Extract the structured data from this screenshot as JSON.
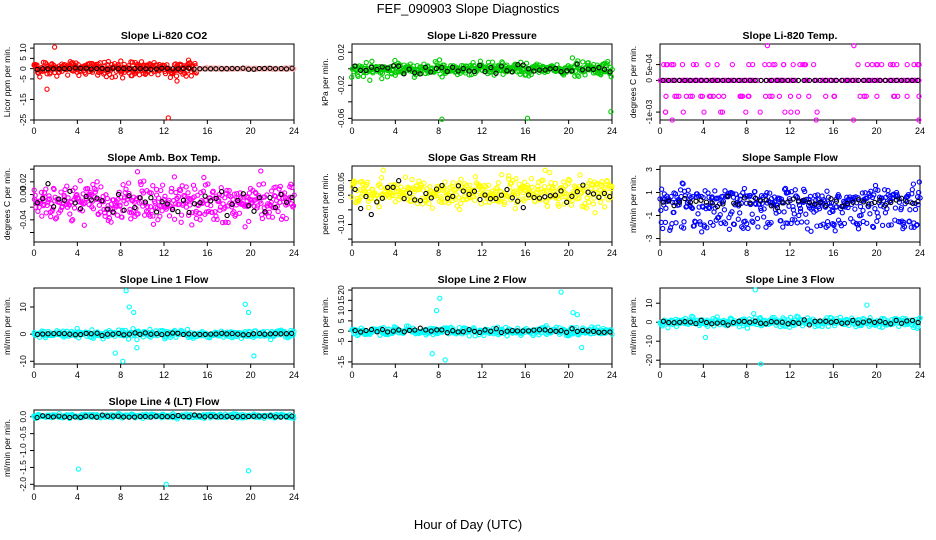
{
  "figure": {
    "title": "FEF_090903  Slope Diagnostics",
    "xlabel": "Hour of Day (UTC)"
  },
  "chart_data": [
    {
      "type": "scatter",
      "title": "Slope Li-820 CO2",
      "ylabel": "Licor ppm per min.",
      "xlim": [
        0,
        24
      ],
      "ylim": [
        -25,
        12
      ],
      "xticks": [
        0,
        4,
        8,
        12,
        16,
        20,
        24
      ],
      "yticks": [
        -25,
        -15,
        -5,
        0,
        5,
        10
      ],
      "ytick_labels": [
        "-25",
        "-15",
        "-5",
        "0",
        "5",
        "10"
      ],
      "grid": false,
      "series": [
        {
          "color": "#ff0000",
          "pattern": {
            "n": 300,
            "x": [
              0,
              15
            ],
            "center": 0,
            "spread": 3.5,
            "outliers": [
              [
                1.2,
                -10
              ],
              [
                1.9,
                10.5
              ],
              [
                12.4,
                -24
              ],
              [
                13.2,
                -6
              ]
            ]
          }
        },
        {
          "color": "#ffb0b0",
          "pattern": {
            "n": 120,
            "x": [
              15,
              24
            ],
            "center": 0,
            "spread": 0.4
          }
        },
        {
          "color": "#000000",
          "pattern": {
            "n": 48,
            "x": [
              0.3,
              23.8
            ],
            "center": 0,
            "spread": 0.3
          }
        }
      ]
    },
    {
      "type": "scatter",
      "title": "Slope Li-820 Pressure",
      "ylabel": "kPa per min.",
      "xlim": [
        0,
        24
      ],
      "ylim": [
        -0.062,
        0.03
      ],
      "xticks": [
        0,
        4,
        8,
        12,
        16,
        20,
        24
      ],
      "yticks": [
        -0.06,
        -0.04,
        -0.02,
        0.0,
        0.02
      ],
      "ytick_labels": [
        "-0.06",
        "",
        "-0.02",
        "",
        "0.02"
      ],
      "grid": false,
      "series": [
        {
          "color": "#00cc00",
          "pattern": {
            "n": 420,
            "x": [
              0,
              24
            ],
            "center": 0,
            "spread": 0.009,
            "outliers": [
              [
                8.3,
                -0.061
              ],
              [
                16.2,
                -0.06
              ],
              [
                23.9,
                -0.052
              ]
            ]
          }
        },
        {
          "color": "#000000",
          "pattern": {
            "n": 48,
            "x": [
              0.3,
              23.8
            ],
            "center": 0,
            "spread": 0.006
          }
        }
      ]
    },
    {
      "type": "scatter",
      "title": "Slope Li-820 Temp.",
      "ylabel": "degrees C per min.",
      "xlim": [
        0,
        24
      ],
      "ylim": [
        -0.00125,
        0.00115
      ],
      "xticks": [
        0,
        4,
        8,
        12,
        16,
        20,
        24
      ],
      "yticks": [
        -0.001,
        0.0,
        0.0005
      ],
      "ytick_labels": [
        "-1e-03",
        "0",
        "5e-04"
      ],
      "grid": false,
      "series": [
        {
          "color": "#ff00ff",
          "pattern": {
            "levels": [
              0.0011,
              0.0005,
              0,
              -0.0005,
              -0.001,
              -0.00125
            ],
            "x": [
              0,
              24
            ],
            "weights": [
              2,
              40,
              160,
              40,
              12,
              4
            ]
          }
        },
        {
          "color": "#000000",
          "pattern": {
            "n": 48,
            "x": [
              0.3,
              23.8
            ],
            "center": 0,
            "spread": 0
          }
        }
      ]
    },
    {
      "type": "scatter",
      "title": "Slope Amb. Box Temp.",
      "ylabel": "degrees C per min.",
      "xlim": [
        0,
        24
      ],
      "ylim": [
        -0.075,
        0.045
      ],
      "xticks": [
        0,
        4,
        8,
        12,
        16,
        20,
        24
      ],
      "yticks": [
        -0.06,
        -0.04,
        -0.02,
        0.0,
        0.02,
        0.04
      ],
      "ytick_labels": [
        "",
        "-0.04",
        "",
        "0.00",
        "0.02",
        ""
      ],
      "grid": false,
      "series": [
        {
          "color": "#ff00ff",
          "pattern": {
            "n": 420,
            "x": [
              0,
              24
            ],
            "center": -0.012,
            "spread": 0.03
          }
        },
        {
          "color": "#000000",
          "pattern": {
            "n": 48,
            "x": [
              0.3,
              23.8
            ],
            "center": -0.01,
            "spread": 0.022
          }
        }
      ]
    },
    {
      "type": "scatter",
      "title": "Slope Gas Stream RH",
      "ylabel": "percent per min.",
      "xlim": [
        0,
        24
      ],
      "ylim": [
        -0.16,
        0.1
      ],
      "xticks": [
        0,
        4,
        8,
        12,
        16,
        20,
        24
      ],
      "yticks": [
        -0.15,
        -0.1,
        -0.05,
        0.0,
        0.05
      ],
      "ytick_labels": [
        "",
        "-0.10",
        "",
        "0.00",
        "0.05"
      ],
      "grid": false,
      "series": [
        {
          "color": "#ffff00",
          "pattern": {
            "n": 420,
            "x": [
              0,
              24
            ],
            "center": 0.01,
            "spread": 0.05
          }
        },
        {
          "color": "#000000",
          "pattern": {
            "n": 48,
            "x": [
              0.3,
              23.8
            ],
            "center": 0,
            "spread": 0.035
          }
        }
      ]
    },
    {
      "type": "scatter",
      "title": "Slope Sample Flow",
      "ylabel": "ml/min per min.",
      "xlim": [
        0,
        24
      ],
      "ylim": [
        -3.3,
        3.3
      ],
      "xticks": [
        0,
        4,
        8,
        12,
        16,
        20,
        24
      ],
      "yticks": [
        -3,
        -1,
        1,
        3
      ],
      "ytick_labels": [
        "-3",
        "-1",
        "1",
        "3"
      ],
      "grid": false,
      "series": [
        {
          "color": "#0000ff",
          "pattern": {
            "n": 420,
            "x": [
              0,
              24
            ],
            "center": 0,
            "spread": 1.0,
            "bands": [
              0.8,
              -1.7
            ]
          }
        },
        {
          "color": "#000000",
          "pattern": {
            "n": 48,
            "x": [
              0.3,
              23.8
            ],
            "center": 0.2,
            "spread": 0.5
          }
        }
      ]
    },
    {
      "type": "scatter",
      "title": "Slope Line 1 Flow",
      "ylabel": "ml/min per min.",
      "xlim": [
        0,
        24
      ],
      "ylim": [
        -11,
        17
      ],
      "xticks": [
        0,
        4,
        8,
        12,
        16,
        20,
        24
      ],
      "yticks": [
        -10,
        0,
        10
      ],
      "ytick_labels": [
        "-10",
        "0",
        "10"
      ],
      "grid": false,
      "series": [
        {
          "color": "#00ffff",
          "pattern": {
            "n": 360,
            "x": [
              0,
              24
            ],
            "center": 0,
            "spread": 1.5,
            "outliers": [
              [
                8.5,
                16
              ],
              [
                8.8,
                10
              ],
              [
                9.2,
                8
              ],
              [
                7.5,
                -7
              ],
              [
                8.2,
                -10
              ],
              [
                19.5,
                11
              ],
              [
                19.8,
                8
              ],
              [
                20.3,
                -8
              ],
              [
                9.5,
                -5
              ]
            ]
          }
        },
        {
          "color": "#000000",
          "pattern": {
            "n": 48,
            "x": [
              0.3,
              23.8
            ],
            "center": 0,
            "spread": 0.4
          }
        }
      ]
    },
    {
      "type": "scatter",
      "title": "Slope Line 2 Flow",
      "ylabel": "ml/min per min.",
      "xlim": [
        0,
        24
      ],
      "ylim": [
        -16,
        21
      ],
      "xticks": [
        0,
        4,
        8,
        12,
        16,
        20,
        24
      ],
      "yticks": [
        -15,
        -5,
        0,
        5,
        10,
        15,
        20
      ],
      "ytick_labels": [
        "-15",
        "-5",
        "0",
        "5",
        "10",
        "15",
        "20"
      ],
      "grid": false,
      "series": [
        {
          "color": "#00ffff",
          "pattern": {
            "n": 360,
            "x": [
              0,
              24
            ],
            "center": 0,
            "spread": 2.0,
            "outliers": [
              [
                8.1,
                16
              ],
              [
                7.8,
                10
              ],
              [
                7.4,
                -11
              ],
              [
                19.3,
                19
              ],
              [
                20.4,
                9
              ],
              [
                20.8,
                8
              ],
              [
                21.2,
                -8
              ],
              [
                8.6,
                -14
              ]
            ]
          }
        },
        {
          "color": "#000000",
          "pattern": {
            "n": 48,
            "x": [
              0.3,
              23.8
            ],
            "center": 0,
            "spread": 1.0
          }
        }
      ]
    },
    {
      "type": "scatter",
      "title": "Slope Line 3 Flow",
      "ylabel": "ml/min per min.",
      "xlim": [
        0,
        24
      ],
      "ylim": [
        -22,
        18
      ],
      "xticks": [
        0,
        4,
        8,
        12,
        16,
        20,
        24
      ],
      "yticks": [
        -20,
        -10,
        0,
        10
      ],
      "ytick_labels": [
        "-20",
        "-10",
        "0",
        "10"
      ],
      "grid": false,
      "series": [
        {
          "color": "#00ffff",
          "pattern": {
            "n": 360,
            "x": [
              0,
              24
            ],
            "center": 0,
            "spread": 2.5,
            "outliers": [
              [
                8.8,
                17
              ],
              [
                9.3,
                -22
              ],
              [
                19.1,
                9
              ],
              [
                4.2,
                -8
              ]
            ]
          }
        },
        {
          "color": "#000000",
          "pattern": {
            "n": 48,
            "x": [
              0.3,
              23.8
            ],
            "center": 0,
            "spread": 1.0
          }
        }
      ]
    },
    {
      "type": "scatter",
      "title": "Slope Line 4 (LT) Flow",
      "ylabel": "ml/min per min.",
      "xlim": [
        0,
        24
      ],
      "ylim": [
        -2.05,
        0.2
      ],
      "xticks": [
        0,
        4,
        8,
        12,
        16,
        20,
        24
      ],
      "yticks": [
        -2.0,
        -1.5,
        -1.0,
        -0.5,
        0.0
      ],
      "ytick_labels": [
        "-2.0",
        "-1.5",
        "-1.0",
        "-0.5",
        "0.0"
      ],
      "grid": false,
      "series": [
        {
          "color": "#00ffff",
          "pattern": {
            "n": 360,
            "x": [
              0,
              24
            ],
            "center": 0.02,
            "spread": 0.06,
            "outliers": [
              [
                4.1,
                -1.55
              ],
              [
                12.2,
                -2.0
              ],
              [
                19.8,
                -1.6
              ]
            ]
          }
        },
        {
          "color": "#000000",
          "pattern": {
            "n": 48,
            "x": [
              0.3,
              23.8
            ],
            "center": 0.01,
            "spread": 0.03
          }
        }
      ]
    }
  ]
}
